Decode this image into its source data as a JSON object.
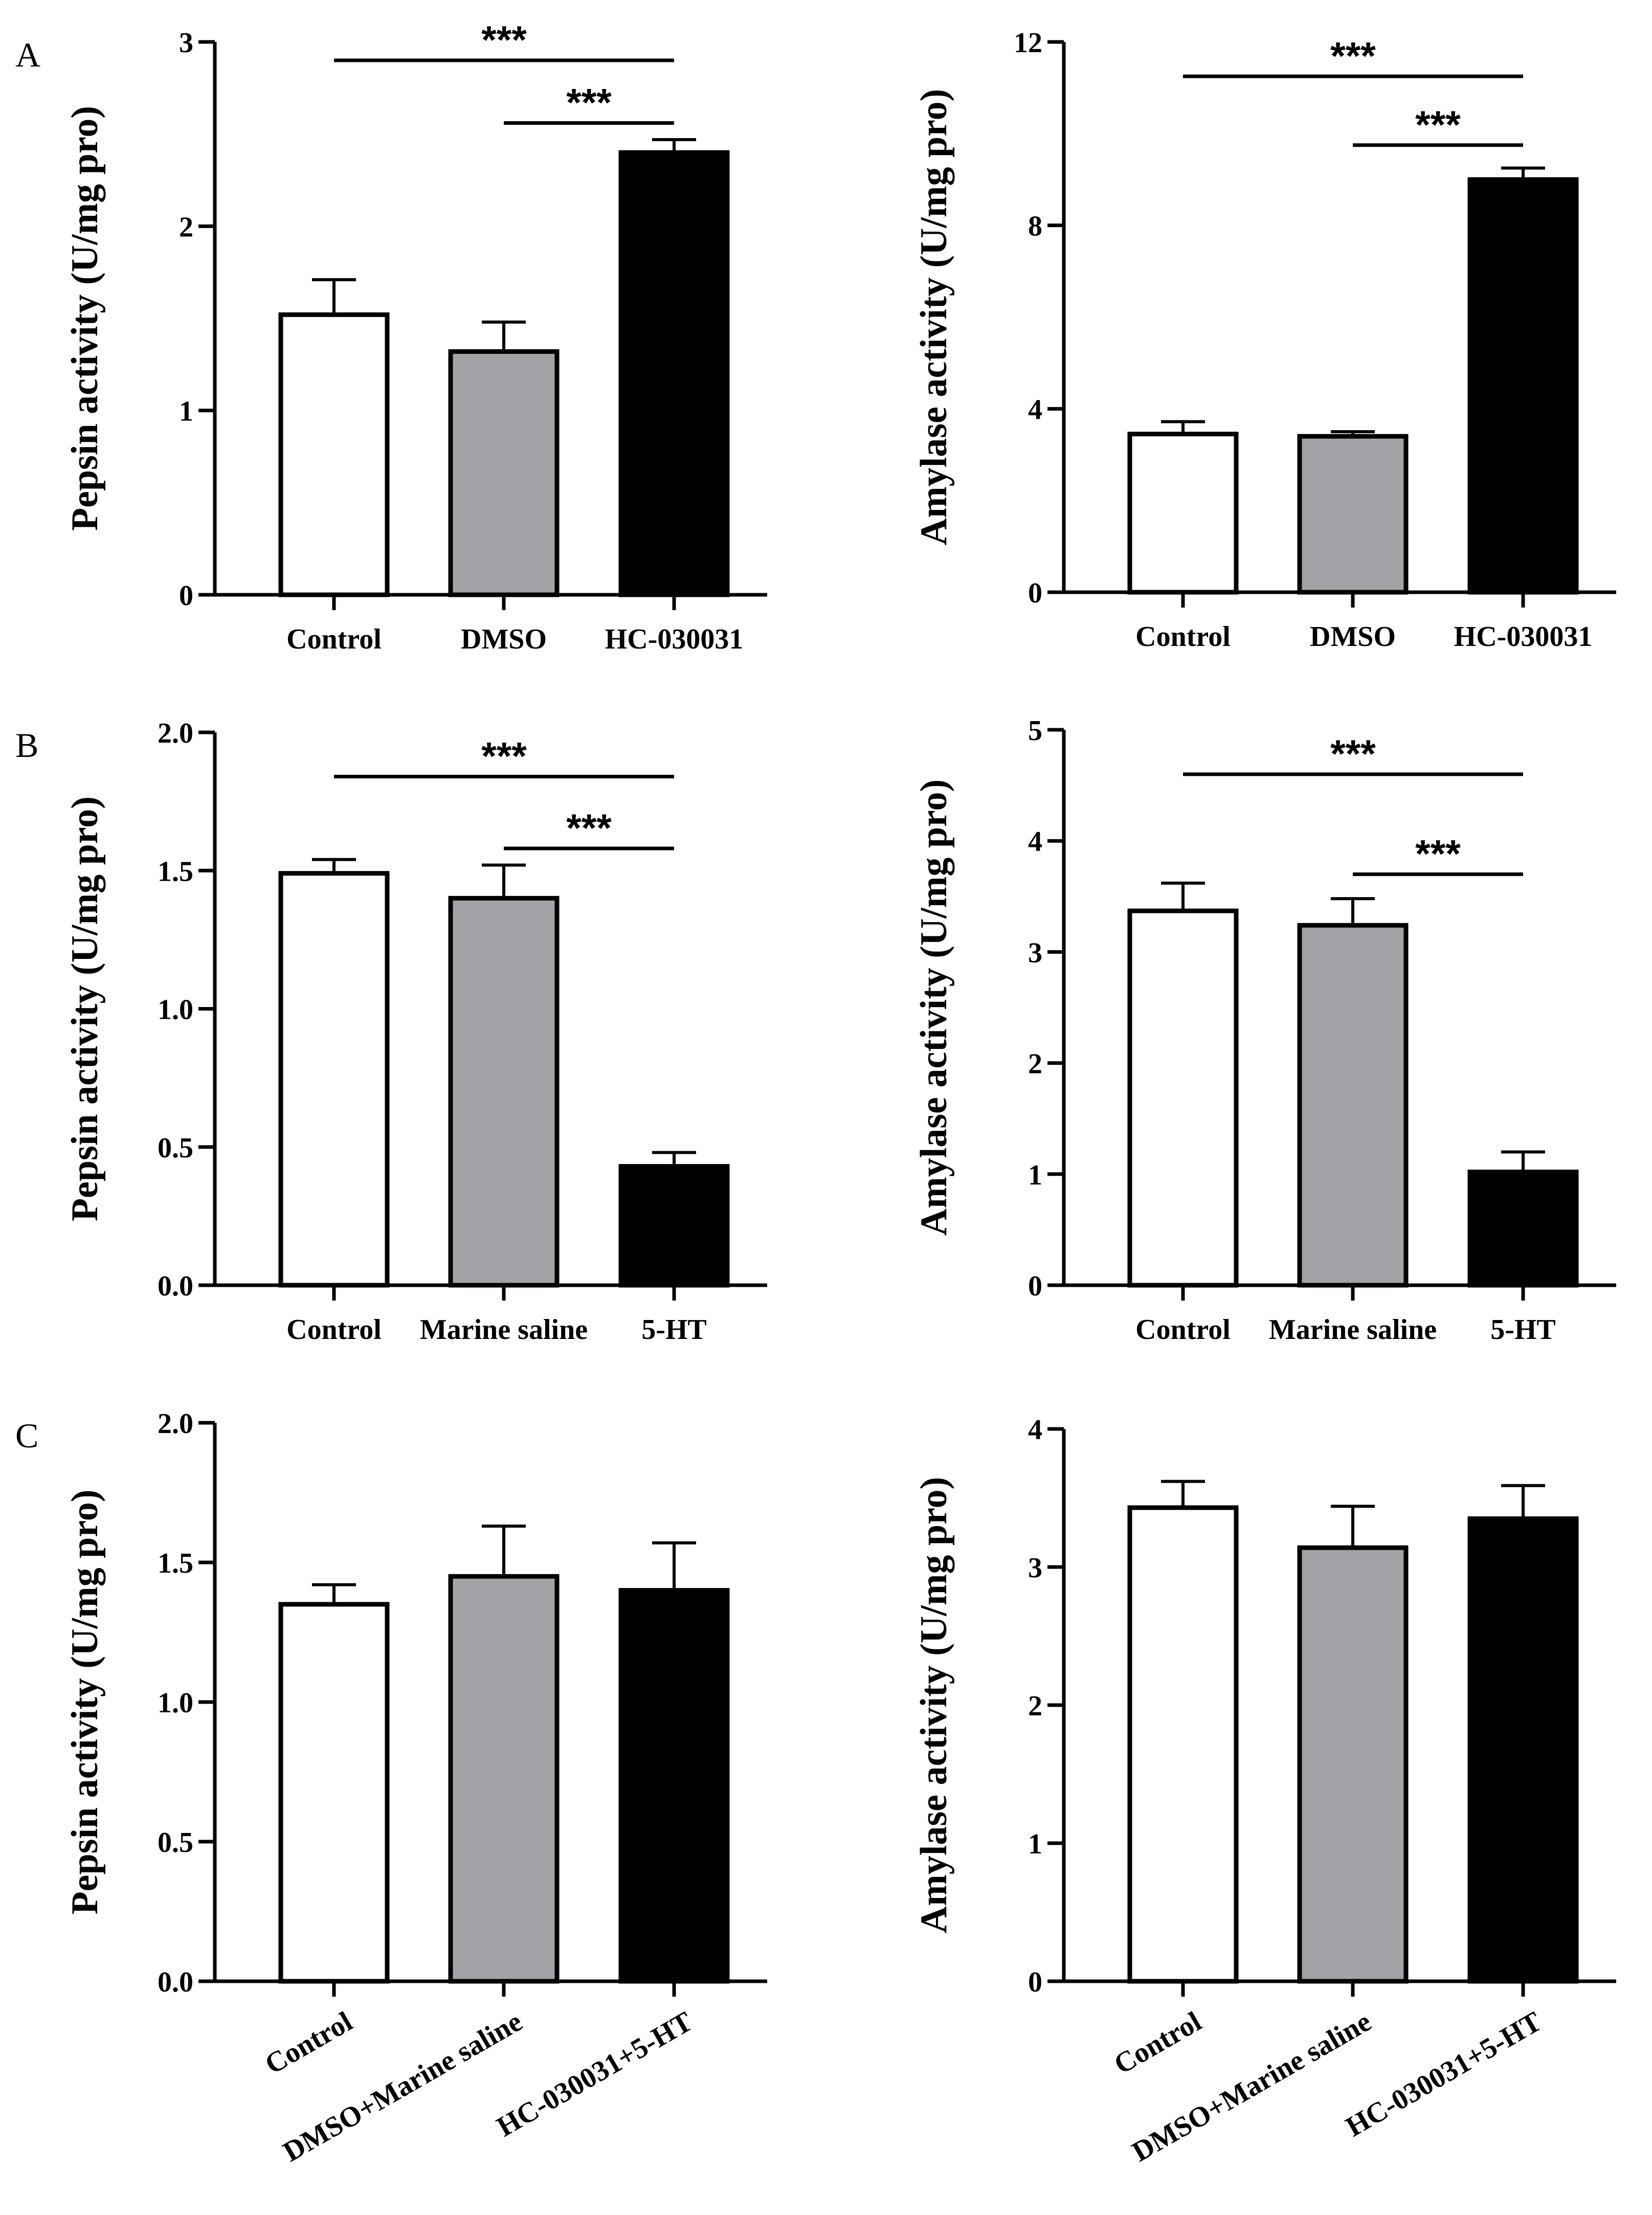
{
  "figure": {
    "panel_labels": [
      "A",
      "B",
      "C"
    ]
  },
  "chart_data": [
    {
      "id": "A-pepsin",
      "panel": "A",
      "type": "bar",
      "ylabel": "Pepsin activity (U/mg pro)",
      "ylim": [
        0,
        3
      ],
      "yticks": [
        0,
        1,
        2,
        3
      ],
      "ytick_labels": [
        "0",
        "1",
        "2",
        "3"
      ],
      "categories": [
        "Control",
        "DMSO",
        "HC-030031"
      ],
      "values": [
        1.52,
        1.32,
        2.4
      ],
      "errors": [
        0.19,
        0.16,
        0.07
      ],
      "colors": [
        "#ffffff",
        "#a1a3a7",
        "#000000"
      ],
      "significance": [
        {
          "from": 0,
          "to": 2,
          "y": 2.9,
          "label": "***"
        },
        {
          "from": 1,
          "to": 2,
          "y": 2.56,
          "label": "***"
        }
      ]
    },
    {
      "id": "A-amylase",
      "panel": "A",
      "type": "bar",
      "ylabel": "Amylase activity (U/mg pro)",
      "ylim": [
        0,
        12
      ],
      "yticks": [
        0,
        4,
        8,
        12
      ],
      "ytick_labels": [
        "0",
        "4",
        "8",
        "12"
      ],
      "categories": [
        "Control",
        "DMSO",
        "HC-030031"
      ],
      "values": [
        3.45,
        3.4,
        9.0
      ],
      "errors": [
        0.27,
        0.1,
        0.25
      ],
      "colors": [
        "#ffffff",
        "#a1a3a7",
        "#000000"
      ],
      "significance": [
        {
          "from": 0,
          "to": 2,
          "y": 11.25,
          "label": "***"
        },
        {
          "from": 1,
          "to": 2,
          "y": 9.75,
          "label": "***"
        }
      ]
    },
    {
      "id": "B-pepsin",
      "panel": "B",
      "type": "bar",
      "ylabel": "Pepsin activity (U/mg pro)",
      "ylim": [
        0,
        2
      ],
      "yticks": [
        0,
        0.5,
        1.0,
        1.5,
        2.0
      ],
      "ytick_labels": [
        "0.0",
        "0.5",
        "1.0",
        "1.5",
        "2.0"
      ],
      "categories": [
        "Control",
        "Marine saline",
        "5-HT"
      ],
      "values": [
        1.49,
        1.4,
        0.43
      ],
      "errors": [
        0.05,
        0.12,
        0.05
      ],
      "colors": [
        "#ffffff",
        "#a1a3a7",
        "#000000"
      ],
      "significance": [
        {
          "from": 0,
          "to": 2,
          "y": 1.84,
          "label": "***"
        },
        {
          "from": 1,
          "to": 2,
          "y": 1.58,
          "label": "***"
        }
      ]
    },
    {
      "id": "B-amylase",
      "panel": "B",
      "type": "bar",
      "ylabel": "Amylase activity (U/mg pro)",
      "ylim": [
        0,
        5
      ],
      "yticks": [
        0,
        1,
        2,
        3,
        4,
        5
      ],
      "ytick_labels": [
        "0",
        "1",
        "2",
        "3",
        "4",
        "5"
      ],
      "categories": [
        "Control",
        "Marine saline",
        "5-HT"
      ],
      "values": [
        3.37,
        3.24,
        1.02
      ],
      "errors": [
        0.25,
        0.24,
        0.18
      ],
      "colors": [
        "#ffffff",
        "#a1a3a7",
        "#000000"
      ],
      "significance": [
        {
          "from": 0,
          "to": 2,
          "y": 4.6,
          "label": "***"
        },
        {
          "from": 1,
          "to": 2,
          "y": 3.7,
          "label": "***"
        }
      ]
    },
    {
      "id": "C-pepsin",
      "panel": "C",
      "type": "bar",
      "ylabel": "Pepsin activity (U/mg pro)",
      "ylim": [
        0,
        2
      ],
      "yticks": [
        0,
        0.5,
        1.0,
        1.5,
        2.0
      ],
      "ytick_labels": [
        "0.0",
        "0.5",
        "1.0",
        "1.5",
        "2.0"
      ],
      "categories": [
        "Control",
        "DMSO+Marine saline",
        "HC-030031+5-HT"
      ],
      "values": [
        1.35,
        1.45,
        1.4
      ],
      "errors": [
        0.07,
        0.18,
        0.17
      ],
      "colors": [
        "#ffffff",
        "#a1a3a7",
        "#000000"
      ],
      "label_rotation": -30,
      "significance": []
    },
    {
      "id": "C-amylase",
      "panel": "C",
      "type": "bar",
      "ylabel": "Amylase activity (U/mg pro)",
      "ylim": [
        0,
        4
      ],
      "yticks": [
        0,
        1,
        2,
        3,
        4
      ],
      "ytick_labels": [
        "0",
        "1",
        "2",
        "3",
        "4"
      ],
      "categories": [
        "Control",
        "DMSO+Marine saline",
        "HC-030031+5-HT"
      ],
      "values": [
        3.43,
        3.14,
        3.35
      ],
      "errors": [
        0.19,
        0.3,
        0.24
      ],
      "colors": [
        "#ffffff",
        "#a1a3a7",
        "#000000"
      ],
      "label_rotation": -30,
      "significance": []
    }
  ]
}
